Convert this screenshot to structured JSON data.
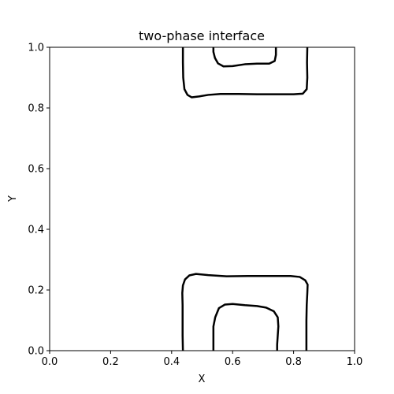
{
  "chart_data": {
    "type": "line",
    "title": "two-phase interface",
    "xlabel": "X",
    "ylabel": "Y",
    "xlim": [
      0.0,
      1.0
    ],
    "ylim": [
      0.0,
      1.0
    ],
    "x_ticks": [
      "0.0",
      "0.2",
      "0.4",
      "0.6",
      "0.8",
      "1.0"
    ],
    "y_ticks": [
      "0.0",
      "0.2",
      "0.4",
      "0.6",
      "0.8",
      "1.0"
    ],
    "grid": false,
    "line_color": "#000000",
    "series": [
      {
        "points": [
          [
            0.437,
            0.0
          ],
          [
            0.436,
            0.05
          ],
          [
            0.436,
            0.1
          ],
          [
            0.436,
            0.15
          ],
          [
            0.435,
            0.19
          ],
          [
            0.437,
            0.215
          ],
          [
            0.444,
            0.235
          ],
          [
            0.458,
            0.248
          ],
          [
            0.48,
            0.253
          ],
          [
            0.52,
            0.249
          ],
          [
            0.58,
            0.245
          ],
          [
            0.65,
            0.246
          ],
          [
            0.72,
            0.246
          ],
          [
            0.79,
            0.246
          ],
          [
            0.82,
            0.243
          ],
          [
            0.838,
            0.232
          ],
          [
            0.846,
            0.218
          ],
          [
            0.845,
            0.19
          ],
          [
            0.843,
            0.15
          ],
          [
            0.842,
            0.1
          ],
          [
            0.842,
            0.05
          ],
          [
            0.842,
            0.0
          ]
        ]
      },
      {
        "points": [
          [
            0.537,
            0.0
          ],
          [
            0.537,
            0.04
          ],
          [
            0.537,
            0.08
          ],
          [
            0.543,
            0.11
          ],
          [
            0.555,
            0.14
          ],
          [
            0.575,
            0.152
          ],
          [
            0.6,
            0.154
          ],
          [
            0.64,
            0.15
          ],
          [
            0.68,
            0.147
          ],
          [
            0.71,
            0.142
          ],
          [
            0.735,
            0.13
          ],
          [
            0.748,
            0.11
          ],
          [
            0.75,
            0.08
          ],
          [
            0.748,
            0.05
          ],
          [
            0.746,
            0.02
          ],
          [
            0.746,
            0.0
          ]
        ]
      },
      {
        "points": [
          [
            0.437,
            1.0
          ],
          [
            0.437,
            0.95
          ],
          [
            0.438,
            0.9
          ],
          [
            0.442,
            0.862
          ],
          [
            0.452,
            0.843
          ],
          [
            0.466,
            0.835
          ],
          [
            0.49,
            0.838
          ],
          [
            0.52,
            0.843
          ],
          [
            0.56,
            0.846
          ],
          [
            0.62,
            0.846
          ],
          [
            0.68,
            0.845
          ],
          [
            0.74,
            0.845
          ],
          [
            0.8,
            0.845
          ],
          [
            0.83,
            0.847
          ],
          [
            0.843,
            0.862
          ],
          [
            0.845,
            0.9
          ],
          [
            0.844,
            0.95
          ],
          [
            0.845,
            1.0
          ]
        ]
      },
      {
        "points": [
          [
            0.537,
            1.0
          ],
          [
            0.537,
            0.985
          ],
          [
            0.542,
            0.965
          ],
          [
            0.552,
            0.947
          ],
          [
            0.57,
            0.937
          ],
          [
            0.6,
            0.938
          ],
          [
            0.64,
            0.944
          ],
          [
            0.68,
            0.946
          ],
          [
            0.72,
            0.946
          ],
          [
            0.738,
            0.955
          ],
          [
            0.742,
            0.975
          ],
          [
            0.742,
            1.0
          ]
        ]
      }
    ]
  }
}
